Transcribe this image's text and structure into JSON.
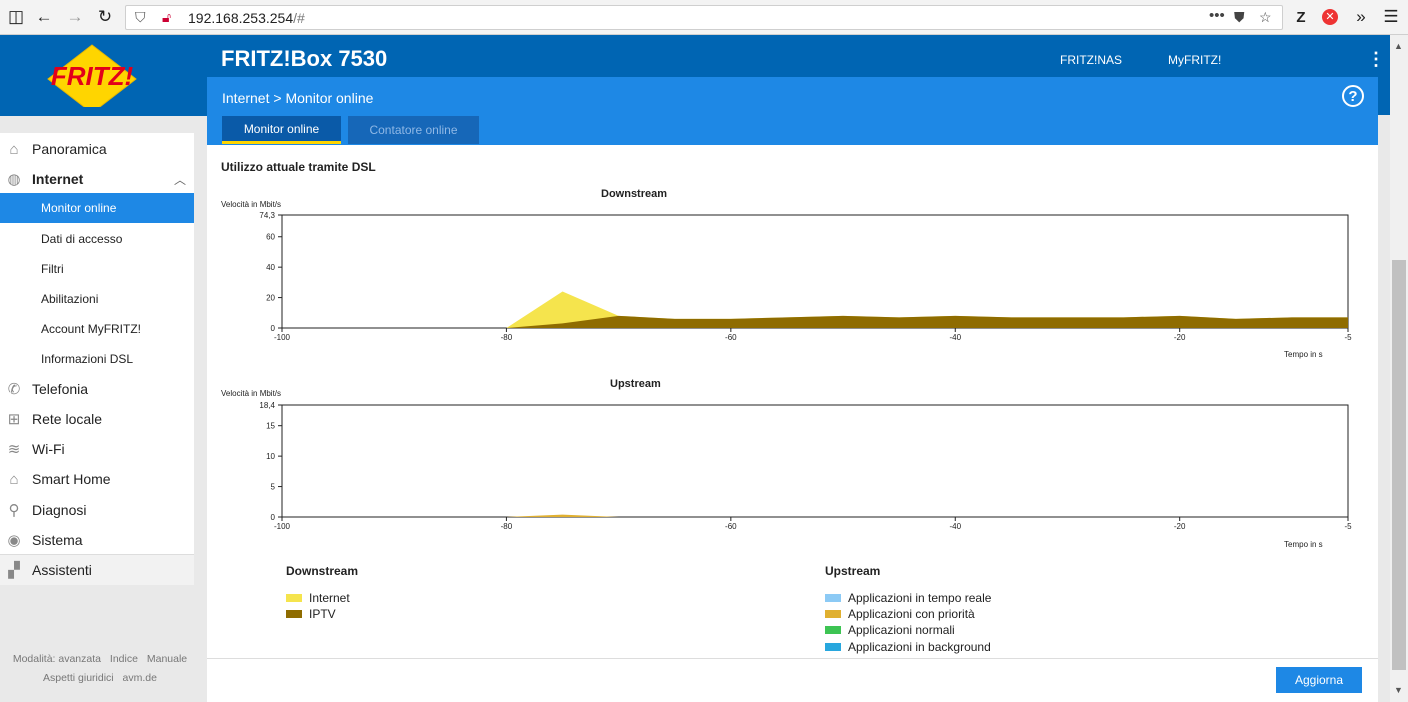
{
  "browser": {
    "url_host": "192.168.253.254",
    "url_path": "/#",
    "menu_dots": "•••",
    "z_label": "Z"
  },
  "header": {
    "logo_text": "FRITZ!",
    "product": "FRITZ!Box 7530",
    "links": [
      "FRITZ!NAS",
      "MyFRITZ!"
    ]
  },
  "breadcrumb": {
    "root": "Internet",
    "separator": ">",
    "current": "Monitor online"
  },
  "tabs": [
    {
      "label": "Monitor online",
      "active": true
    },
    {
      "label": "Contatore online",
      "active": false
    }
  ],
  "sidebar": {
    "items": [
      {
        "label": "Panoramica",
        "icon": "home-icon"
      },
      {
        "label": "Internet",
        "icon": "globe-icon",
        "expanded": true
      },
      {
        "label": "Monitor online",
        "sub": true,
        "active": true
      },
      {
        "label": "Dati di accesso",
        "sub": true
      },
      {
        "label": "Filtri",
        "sub": true
      },
      {
        "label": "Abilitazioni",
        "sub": true
      },
      {
        "label": "Account MyFRITZ!",
        "sub": true
      },
      {
        "label": "Informazioni DSL",
        "sub": true
      },
      {
        "label": "Telefonia",
        "icon": "phone-icon"
      },
      {
        "label": "Rete locale",
        "icon": "network-icon"
      },
      {
        "label": "Wi-Fi",
        "icon": "wifi-icon"
      },
      {
        "label": "Smart Home",
        "icon": "smart-home-icon"
      },
      {
        "label": "Diagnosi",
        "icon": "diagnosis-icon"
      },
      {
        "label": "Sistema",
        "icon": "system-icon"
      },
      {
        "label": "Assistenti",
        "icon": "wizard-icon"
      }
    ],
    "footer_row1": [
      "Modalità: avanzata",
      "Indice",
      "Manuale"
    ],
    "footer_row2": [
      "Aspetti giuridici",
      "avm.de"
    ]
  },
  "main": {
    "section_title": "Utilizzo attuale tramite DSL",
    "refresh_label": "Aggiorna"
  },
  "chart_data": [
    {
      "type": "area",
      "title": "Downstream",
      "ylabel": "Velocità in Mbit/s",
      "xlabel": "Tempo in s",
      "xlim": [
        -100,
        -5
      ],
      "ylim": [
        0,
        74.3
      ],
      "xticks": [
        -100,
        -80,
        -60,
        -40,
        -20,
        -5
      ],
      "yticks": [
        0,
        20,
        40,
        60,
        74.3
      ],
      "ytick_labels": [
        "0",
        "20",
        "40",
        "60",
        "74,3"
      ],
      "x": [
        -80,
        -75,
        -70,
        -65,
        -60,
        -55,
        -50,
        -45,
        -40,
        -35,
        -30,
        -25,
        -20,
        -15,
        -10,
        -5
      ],
      "series": [
        {
          "name": "Internet",
          "color": "#f5e44d",
          "values": [
            0,
            24,
            8,
            6,
            6,
            7,
            8,
            7,
            8,
            7,
            7,
            7,
            8,
            6,
            7,
            7
          ]
        },
        {
          "name": "IPTV",
          "color": "#8f6c00",
          "values": [
            0,
            3,
            8,
            6,
            6,
            7,
            8,
            7,
            8,
            7,
            7,
            7,
            8,
            6,
            7,
            7
          ]
        }
      ],
      "legend_title": "Downstream"
    },
    {
      "type": "area",
      "title": "Upstream",
      "ylabel": "Velocità in Mbit/s",
      "xlabel": "Tempo in s",
      "xlim": [
        -100,
        -5
      ],
      "ylim": [
        0,
        18.4
      ],
      "xticks": [
        -100,
        -80,
        -60,
        -40,
        -20,
        -5
      ],
      "yticks": [
        0,
        5,
        10,
        15,
        18.4
      ],
      "ytick_labels": [
        "0",
        "5",
        "10",
        "15",
        "18,4"
      ],
      "x": [
        -80,
        -75,
        -70,
        -65
      ],
      "series": [
        {
          "name": "Applicazioni in tempo reale",
          "color": "#8ccaf5",
          "values": [
            0,
            0,
            0,
            0
          ]
        },
        {
          "name": "Applicazioni con priorità",
          "color": "#e0b030",
          "values": [
            0,
            0.4,
            0,
            0
          ]
        },
        {
          "name": "Applicazioni normali",
          "color": "#3dc453",
          "values": [
            0,
            0,
            0,
            0
          ]
        },
        {
          "name": "Applicazioni in background",
          "color": "#28a7de",
          "values": [
            0,
            0,
            0,
            0
          ]
        }
      ],
      "legend_title": "Upstream"
    }
  ]
}
